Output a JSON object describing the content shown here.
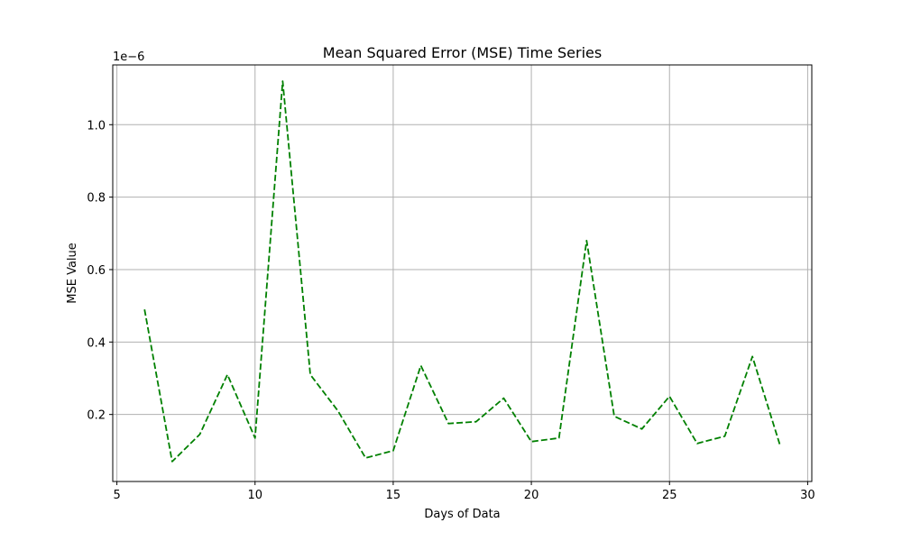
{
  "chart_data": {
    "type": "line",
    "title": "Mean Squared Error (MSE) Time Series",
    "xlabel": "Days of Data",
    "ylabel": "MSE Value",
    "y_offset_label": "1e−6",
    "xlim": [
      4.85,
      30.15
    ],
    "ylim": [
      0.015,
      1.165
    ],
    "x_ticks": [
      5,
      10,
      15,
      20,
      25,
      30
    ],
    "x_tick_labels": [
      "5",
      "10",
      "15",
      "20",
      "25",
      "30"
    ],
    "y_ticks": [
      0.2,
      0.4,
      0.6,
      0.8,
      1.0
    ],
    "y_tick_labels": [
      "0.2",
      "0.4",
      "0.6",
      "0.8",
      "1.0"
    ],
    "grid": true,
    "series": [
      {
        "color": "#008000",
        "line_style": "dashed",
        "x": [
          6,
          7,
          8,
          9,
          10,
          11,
          12,
          13,
          14,
          15,
          16,
          17,
          18,
          19,
          20,
          21,
          22,
          23,
          24,
          25,
          26,
          27,
          28,
          29
        ],
        "y": [
          0.49,
          0.07,
          0.145,
          0.31,
          0.135,
          1.12,
          0.31,
          0.21,
          0.08,
          0.1,
          0.335,
          0.175,
          0.18,
          0.245,
          0.125,
          0.135,
          0.68,
          0.195,
          0.16,
          0.25,
          0.12,
          0.14,
          0.36,
          0.115
        ]
      }
    ]
  }
}
